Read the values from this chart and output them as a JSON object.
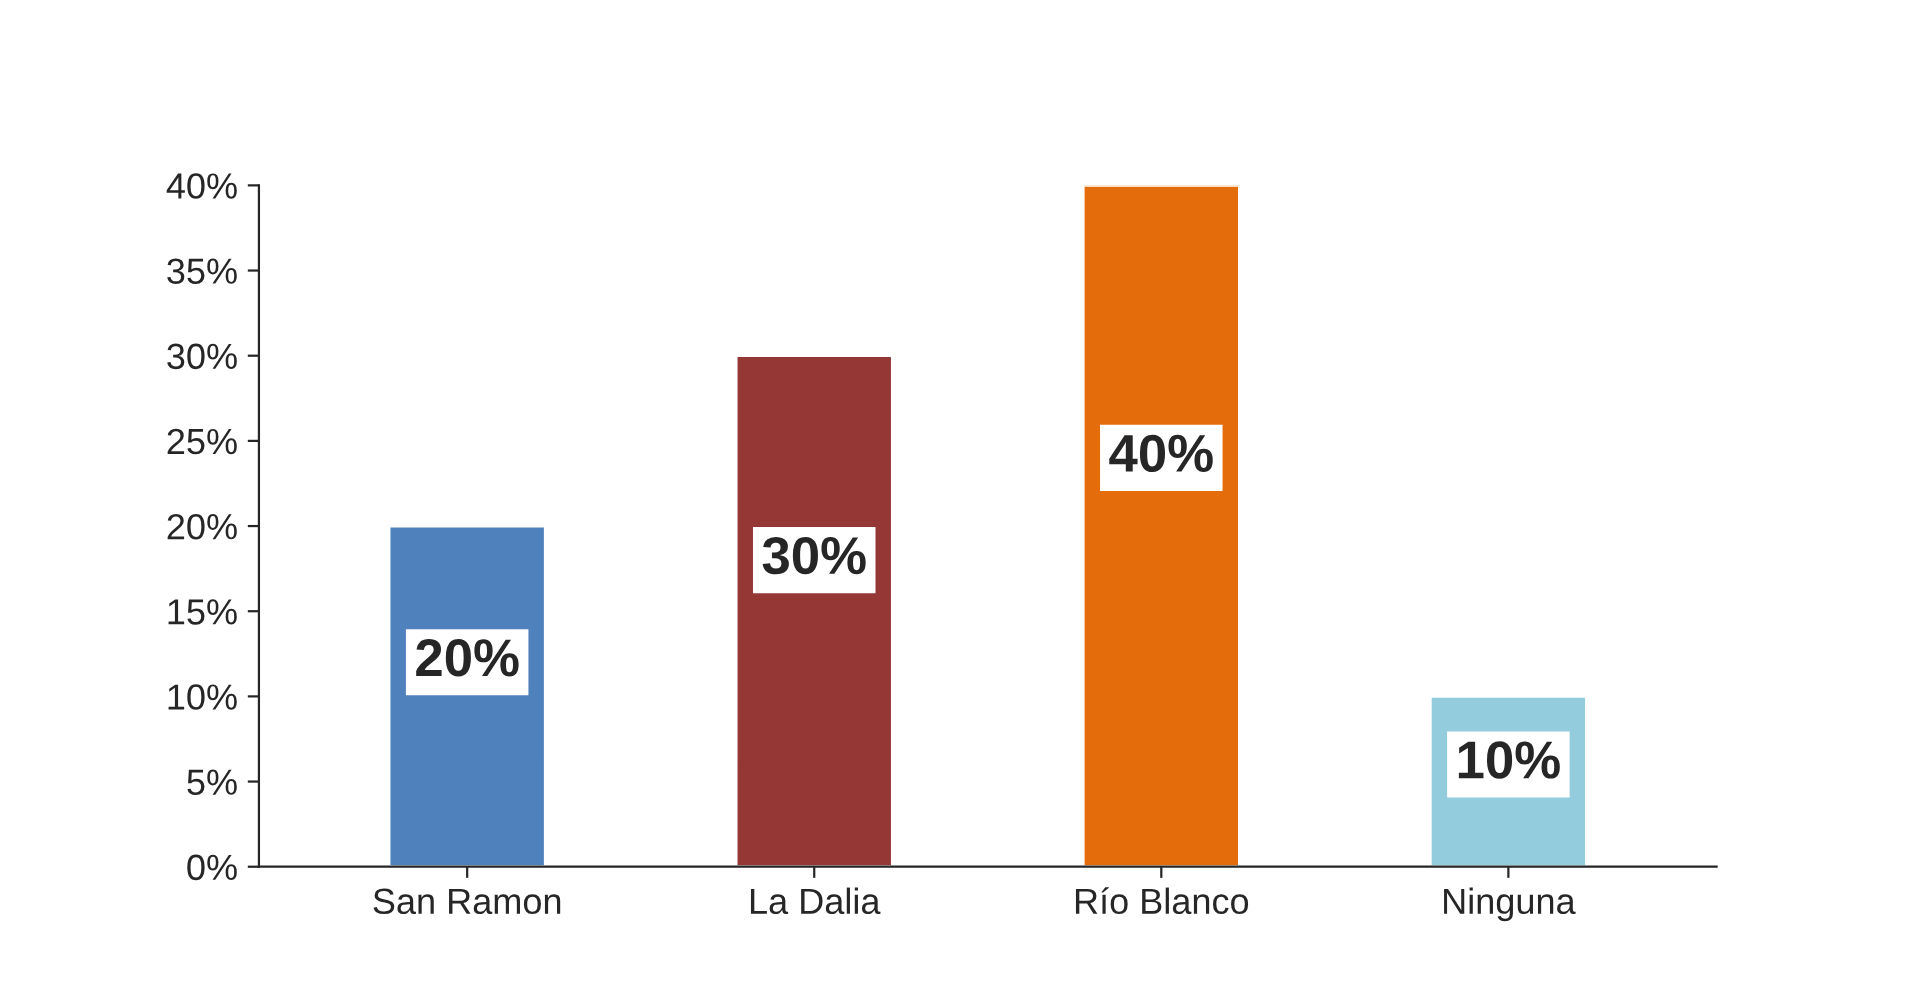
{
  "chart_data": {
    "type": "bar",
    "categories": [
      "San Ramon",
      "La Dalia",
      "Río Blanco",
      "Ninguna"
    ],
    "values": [
      20,
      30,
      40,
      10
    ],
    "colors": [
      "#4f81bd",
      "#953735",
      "#e46c0a",
      "#93cddd"
    ],
    "value_labels": [
      "20%",
      "30%",
      "40%",
      "10%"
    ],
    "ylim": [
      0,
      40
    ],
    "yticks": [
      {
        "value": 0,
        "label": "0%"
      },
      {
        "value": 5,
        "label": "5%"
      },
      {
        "value": 10,
        "label": "10%"
      },
      {
        "value": 15,
        "label": "15%"
      },
      {
        "value": 20,
        "label": "20%"
      },
      {
        "value": 25,
        "label": "25%"
      },
      {
        "value": 30,
        "label": "30%"
      },
      {
        "value": 35,
        "label": "35%"
      },
      {
        "value": 40,
        "label": "40%"
      }
    ],
    "grid": false
  }
}
